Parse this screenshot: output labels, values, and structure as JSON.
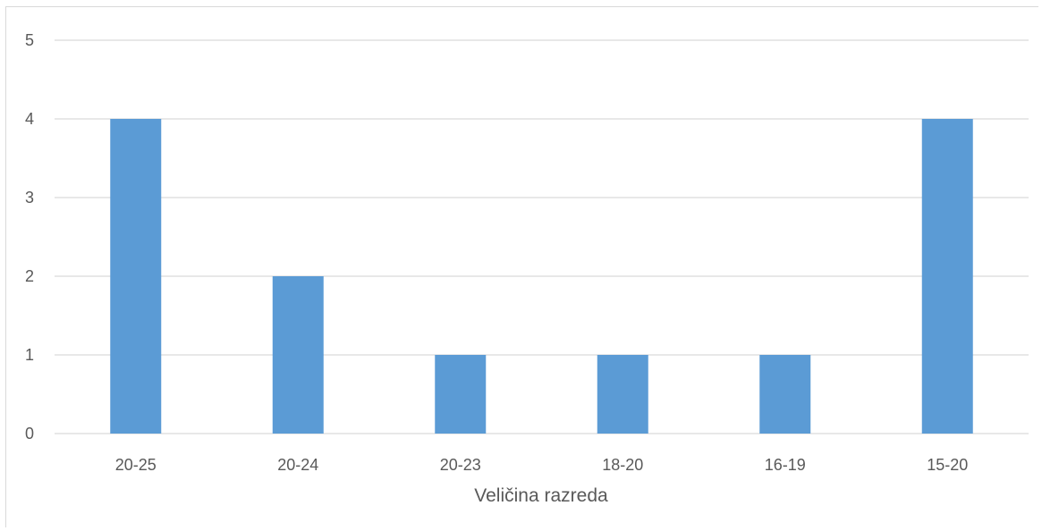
{
  "chart_data": {
    "type": "bar",
    "title": "",
    "xlabel": "Veličina razreda",
    "ylabel": "",
    "categories": [
      "20-25",
      "20-24",
      "20-23",
      "18-20",
      "16-19",
      "15-20"
    ],
    "values": [
      4,
      2,
      1,
      1,
      1,
      4
    ],
    "ylim": [
      0,
      5
    ],
    "yticks": [
      "0",
      "1",
      "2",
      "3",
      "4",
      "5"
    ],
    "grid": true,
    "legend": "none",
    "bar_color": "#5b9bd5",
    "grid_color": "#d9d9d9",
    "text_color": "#595959"
  }
}
